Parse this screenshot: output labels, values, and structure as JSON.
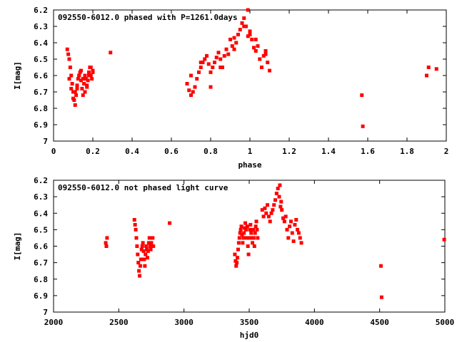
{
  "chart_data": [
    {
      "type": "scatter",
      "title": "092550-6012.0 phased with P=1261.0days",
      "xlabel": "phase",
      "ylabel": "I[mag]",
      "xlim": [
        0,
        2
      ],
      "ylim": [
        7,
        6.2
      ],
      "y_reversed": true,
      "xticks": [
        "0",
        "0.2",
        "0.4",
        "0.6",
        "0.8",
        "1",
        "1.2",
        "1.4",
        "1.6",
        "1.8",
        "2"
      ],
      "yticks": [
        "6.2",
        "6.3",
        "6.4",
        "6.5",
        "6.6",
        "6.7",
        "6.8",
        "6.9",
        "7"
      ],
      "marker_color": "#ff0000",
      "series": [
        {
          "x": [
            0.07,
            0.075,
            0.08,
            0.085,
            0.09,
            0.095,
            0.1,
            0.105,
            0.11,
            0.115,
            0.12,
            0.125,
            0.13,
            0.135,
            0.14,
            0.145,
            0.15,
            0.155,
            0.16,
            0.165,
            0.17,
            0.175,
            0.18,
            0.185,
            0.19,
            0.195,
            0.2,
            0.08,
            0.09,
            0.1,
            0.11,
            0.12,
            0.13,
            0.14,
            0.15,
            0.16,
            0.17,
            0.18,
            0.19,
            0.2,
            0.29,
            0.68,
            0.69,
            0.7,
            0.71,
            0.72,
            0.73,
            0.74,
            0.75,
            0.76,
            0.77,
            0.78,
            0.79,
            0.8,
            0.81,
            0.82,
            0.83,
            0.84,
            0.85,
            0.86,
            0.87,
            0.88,
            0.89,
            0.9,
            0.91,
            0.92,
            0.93,
            0.94,
            0.95,
            0.96,
            0.97,
            0.98,
            0.99,
            1.0,
            1.01,
            1.02,
            1.03,
            1.04,
            1.05,
            1.06,
            1.07,
            1.08,
            1.09,
            1.1,
            1.57,
            1.575,
            1.9,
            1.91,
            1.95,
            0.99,
            1.0,
            0.7,
            0.75,
            0.8,
            0.85,
            0.92,
            0.97,
            1.03,
            1.08
          ],
          "y": [
            6.44,
            6.47,
            6.5,
            6.55,
            6.6,
            6.65,
            6.7,
            6.75,
            6.78,
            6.72,
            6.68,
            6.62,
            6.6,
            6.58,
            6.63,
            6.68,
            6.72,
            6.65,
            6.6,
            6.62,
            6.67,
            6.63,
            6.58,
            6.55,
            6.6,
            6.62,
            6.58,
            6.62,
            6.68,
            6.74,
            6.7,
            6.66,
            6.6,
            6.57,
            6.62,
            6.7,
            6.66,
            6.6,
            6.55,
            6.57,
            6.46,
            6.65,
            6.69,
            6.72,
            6.7,
            6.67,
            6.62,
            6.58,
            6.55,
            6.52,
            6.5,
            6.48,
            6.53,
            6.58,
            6.55,
            6.52,
            6.49,
            6.46,
            6.5,
            6.55,
            6.48,
            6.44,
            6.47,
            6.38,
            6.42,
            6.37,
            6.4,
            6.35,
            6.32,
            6.28,
            6.25,
            6.3,
            6.36,
            6.33,
            6.38,
            6.43,
            6.45,
            6.42,
            6.5,
            6.55,
            6.48,
            6.45,
            6.52,
            6.57,
            6.72,
            6.91,
            6.6,
            6.55,
            6.56,
            6.2,
            6.35,
            6.6,
            6.52,
            6.67,
            6.55,
            6.44,
            6.3,
            6.38,
            6.47
          ]
        }
      ]
    },
    {
      "type": "scatter",
      "title": "092550-6012.0 not phased light curve",
      "xlabel": "hjd0",
      "ylabel": "I[mag]",
      "xlim": [
        2000,
        5000
      ],
      "ylim": [
        7,
        6.2
      ],
      "y_reversed": true,
      "xticks": [
        "2000",
        "2500",
        "3000",
        "3500",
        "4000",
        "4500",
        "5000"
      ],
      "yticks": [
        "6.2",
        "6.3",
        "6.4",
        "6.5",
        "6.6",
        "6.7",
        "6.8",
        "6.9",
        "7"
      ],
      "marker_color": "#ff0000",
      "series": [
        {
          "x": [
            2400,
            2405,
            2410,
            2620,
            2625,
            2630,
            2635,
            2640,
            2645,
            2650,
            2655,
            2660,
            2665,
            2670,
            2675,
            2680,
            2685,
            2690,
            2695,
            2700,
            2705,
            2710,
            2715,
            2720,
            2725,
            2730,
            2735,
            2740,
            2745,
            2750,
            2755,
            2760,
            2765,
            2890,
            3390,
            3395,
            3400,
            3405,
            3410,
            3415,
            3420,
            3425,
            3430,
            3435,
            3440,
            3445,
            3450,
            3455,
            3460,
            3465,
            3470,
            3475,
            3480,
            3485,
            3490,
            3495,
            3500,
            3505,
            3510,
            3515,
            3520,
            3525,
            3530,
            3535,
            3540,
            3545,
            3550,
            3555,
            3560,
            3565,
            3600,
            3610,
            3620,
            3630,
            3640,
            3650,
            3660,
            3670,
            3680,
            3690,
            3700,
            3710,
            3720,
            3730,
            3735,
            3740,
            3745,
            3750,
            3760,
            3770,
            3780,
            3790,
            3800,
            3810,
            3820,
            3830,
            3840,
            3850,
            3860,
            3870,
            3880,
            3890,
            3900,
            4510,
            4515,
            4995
          ],
          "y": [
            6.58,
            6.6,
            6.55,
            6.44,
            6.47,
            6.5,
            6.55,
            6.6,
            6.65,
            6.7,
            6.75,
            6.78,
            6.72,
            6.68,
            6.62,
            6.6,
            6.58,
            6.63,
            6.68,
            6.72,
            6.65,
            6.6,
            6.62,
            6.67,
            6.63,
            6.58,
            6.55,
            6.6,
            6.62,
            6.58,
            6.6,
            6.55,
            6.6,
            6.46,
            6.65,
            6.69,
            6.72,
            6.7,
            6.67,
            6.62,
            6.58,
            6.55,
            6.52,
            6.5,
            6.48,
            6.53,
            6.58,
            6.55,
            6.52,
            6.49,
            6.46,
            6.5,
            6.55,
            6.48,
            6.6,
            6.65,
            6.55,
            6.5,
            6.47,
            6.52,
            6.55,
            6.58,
            6.5,
            6.55,
            6.6,
            6.52,
            6.48,
            6.45,
            6.5,
            6.55,
            6.38,
            6.42,
            6.37,
            6.4,
            6.35,
            6.42,
            6.45,
            6.4,
            6.38,
            6.35,
            6.32,
            6.28,
            6.25,
            6.3,
            6.23,
            6.36,
            6.33,
            6.38,
            6.43,
            6.45,
            6.42,
            6.5,
            6.55,
            6.48,
            6.45,
            6.52,
            6.57,
            6.47,
            6.44,
            6.5,
            6.52,
            6.55,
            6.58,
            6.72,
            6.91,
            6.56
          ]
        }
      ]
    }
  ]
}
